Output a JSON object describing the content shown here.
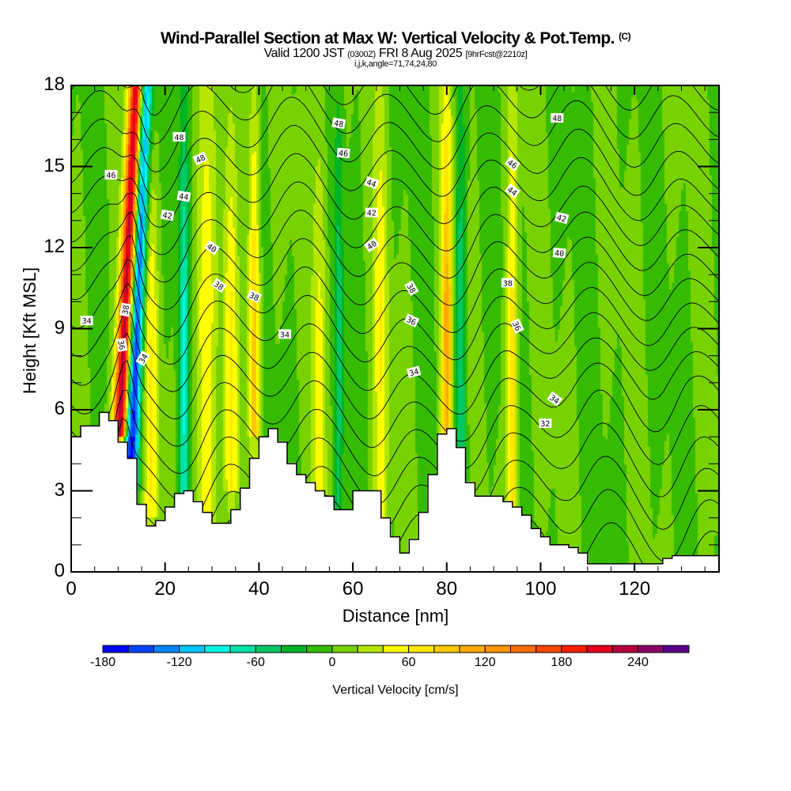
{
  "header": {
    "title": "Wind-Parallel Section at Max W: Vertical Velocity & Pot.Temp.",
    "copyright": "(C)",
    "valid_prefix": "Valid 1200 JST",
    "valid_utc": "(0300Z)",
    "valid_date": "FRI 8 Aug 2025",
    "forecast_info": "[9hrFcst@2210z]",
    "indices": "i,j,k,angle=71,74,24,80"
  },
  "chart_data": {
    "type": "heatmap",
    "title": "Wind-Parallel Section at Max W: Vertical Velocity & Pot.Temp.",
    "xlabel": "Distance [nm]",
    "ylabel": "Height [Kft MSL]",
    "xlim": [
      0,
      138
    ],
    "ylim": [
      0,
      18
    ],
    "x_ticks": [
      0,
      20,
      40,
      60,
      80,
      100,
      120
    ],
    "x_tick_labels": [
      "0",
      "20",
      "40",
      "60",
      "80",
      "100",
      "120"
    ],
    "y_ticks": [
      0,
      3,
      6,
      9,
      12,
      15,
      18
    ],
    "y_tick_labels": [
      "0",
      "3",
      "6",
      "9",
      "12",
      "15",
      "18"
    ],
    "colorbar": {
      "label": "Vertical Velocity [cm/s]",
      "orientation": "horizontal",
      "placement": "bottom",
      "levels": [
        -180,
        -160,
        -140,
        -120,
        -100,
        -80,
        -60,
        -40,
        -20,
        0,
        20,
        40,
        60,
        80,
        100,
        120,
        140,
        160,
        180,
        200,
        220,
        240,
        260,
        280
      ],
      "tick_labels": [
        "-180",
        "-120",
        "-60",
        "0",
        "60",
        "120",
        "180",
        "240"
      ],
      "colors": [
        "#0000ff",
        "#0046ff",
        "#0087ff",
        "#00c6ff",
        "#00fae6",
        "#00e1a5",
        "#00c864",
        "#00b427",
        "#35bc00",
        "#78d200",
        "#b4e600",
        "#ffff00",
        "#ffe600",
        "#ffc800",
        "#ffaa00",
        "#ff9600",
        "#ff6e00",
        "#ff4600",
        "#ff1e00",
        "#e6001e",
        "#b4003c",
        "#8c0064",
        "#5a008c"
      ]
    },
    "vertical_velocity_features": [
      {
        "x_nm": 11.5,
        "lean_nm_per_kft": 0.28,
        "w_cm_s": 250,
        "width_nm": 1.6,
        "base_kft": 5
      },
      {
        "x_nm": 13.8,
        "lean_nm_per_kft": 0.22,
        "w_cm_s": -175,
        "width_nm": 1.6,
        "base_kft": 3
      },
      {
        "x_nm": 17,
        "lean_nm_per_kft": 0,
        "w_cm_s": 55,
        "width_nm": 1.6,
        "base_kft": 2
      },
      {
        "x_nm": 24,
        "lean_nm_per_kft": 0,
        "w_cm_s": -80,
        "width_nm": 1.1,
        "base_kft": 2.5
      },
      {
        "x_nm": 28.5,
        "lean_nm_per_kft": 0,
        "w_cm_s": 55,
        "width_nm": 2.2,
        "base_kft": 1.5
      },
      {
        "x_nm": 34,
        "lean_nm_per_kft": 0,
        "w_cm_s": 60,
        "width_nm": 1.5,
        "base_kft": 3
      },
      {
        "x_nm": 39,
        "lean_nm_per_kft": 0,
        "w_cm_s": 90,
        "width_nm": 1.2,
        "base_kft": 5
      },
      {
        "x_nm": 53,
        "lean_nm_per_kft": 0,
        "w_cm_s": 45,
        "width_nm": 1.5,
        "base_kft": 1
      },
      {
        "x_nm": 57,
        "lean_nm_per_kft": 0,
        "w_cm_s": -50,
        "width_nm": 1.0,
        "base_kft": 1
      },
      {
        "x_nm": 66,
        "lean_nm_per_kft": 0,
        "w_cm_s": 55,
        "width_nm": 1.5,
        "base_kft": 2
      },
      {
        "x_nm": 80,
        "lean_nm_per_kft": 0,
        "w_cm_s": 110,
        "width_nm": 1.2,
        "base_kft": 3
      },
      {
        "x_nm": 83,
        "lean_nm_per_kft": 0,
        "w_cm_s": -60,
        "width_nm": 1.2,
        "base_kft": 3
      },
      {
        "x_nm": 94,
        "lean_nm_per_kft": 0,
        "w_cm_s": 70,
        "width_nm": 1.2,
        "base_kft": 1
      }
    ],
    "terrain_kft": {
      "x_nm": [
        0,
        2,
        6,
        8,
        10,
        12,
        14,
        16,
        18,
        20,
        22,
        24,
        26,
        28,
        30,
        32,
        34,
        36,
        38,
        40,
        42,
        44,
        46,
        48,
        50,
        52,
        54,
        56,
        58,
        60,
        62,
        64,
        66,
        68,
        70,
        72,
        74,
        76,
        78,
        80,
        82,
        84,
        86,
        88,
        90,
        92,
        94,
        96,
        98,
        100,
        102,
        104,
        106,
        108,
        110,
        112,
        114,
        116,
        118,
        120,
        122,
        124,
        126,
        128,
        130,
        132,
        134,
        136,
        138
      ],
      "height": [
        5.0,
        5.4,
        5.9,
        5.6,
        4.8,
        4.2,
        2.5,
        1.7,
        1.9,
        2.4,
        2.9,
        3.0,
        2.6,
        2.2,
        1.8,
        1.8,
        2.3,
        3.1,
        4.2,
        5.0,
        5.3,
        4.8,
        4.0,
        3.6,
        3.3,
        3.0,
        2.8,
        2.3,
        2.3,
        3.0,
        3.0,
        3.0,
        2.0,
        1.3,
        0.7,
        1.2,
        2.2,
        3.6,
        5.1,
        5.3,
        4.6,
        3.3,
        2.8,
        2.8,
        2.8,
        2.6,
        2.4,
        2.1,
        1.6,
        1.3,
        1.0,
        1.0,
        0.9,
        0.7,
        0.3,
        0.3,
        0.3,
        0.3,
        0.3,
        0.3,
        0.3,
        0.3,
        0.5,
        0.6,
        0.6,
        0.6,
        0.6,
        0.6,
        0.6
      ]
    },
    "potential_temperature_contours": {
      "levels_C": [
        32,
        33,
        34,
        35,
        36,
        37,
        38,
        39,
        40,
        41,
        42,
        43,
        44,
        45,
        46,
        47,
        48,
        49
      ],
      "labels": [
        {
          "text": "48",
          "x_nm": 23,
          "y_kft": 16.1,
          "angle": 0
        },
        {
          "text": "48",
          "x_nm": 27.5,
          "y_kft": 15.3,
          "angle": -25
        },
        {
          "text": "46",
          "x_nm": 8.5,
          "y_kft": 14.7,
          "angle": 0
        },
        {
          "text": "44",
          "x_nm": 24,
          "y_kft": 13.9,
          "angle": 10
        },
        {
          "text": "42",
          "x_nm": 20.5,
          "y_kft": 13.2,
          "angle": 10
        },
        {
          "text": "40",
          "x_nm": 30,
          "y_kft": 12.0,
          "angle": 35
        },
        {
          "text": "38",
          "x_nm": 31.5,
          "y_kft": 10.6,
          "angle": 35
        },
        {
          "text": "38",
          "x_nm": 39,
          "y_kft": 10.2,
          "angle": 25
        },
        {
          "text": "38",
          "x_nm": 11.5,
          "y_kft": 9.7,
          "angle": -80
        },
        {
          "text": "34",
          "x_nm": 3.3,
          "y_kft": 9.3,
          "angle": 0
        },
        {
          "text": "36",
          "x_nm": 10.8,
          "y_kft": 8.4,
          "angle": 80
        },
        {
          "text": "34",
          "x_nm": 15.3,
          "y_kft": 7.9,
          "angle": -60
        },
        {
          "text": "34",
          "x_nm": 45.5,
          "y_kft": 8.8,
          "angle": 0
        },
        {
          "text": "48",
          "x_nm": 57,
          "y_kft": 16.6,
          "angle": 10
        },
        {
          "text": "46",
          "x_nm": 58,
          "y_kft": 15.5,
          "angle": 5
        },
        {
          "text": "44",
          "x_nm": 64,
          "y_kft": 14.4,
          "angle": 20
        },
        {
          "text": "42",
          "x_nm": 64,
          "y_kft": 13.3,
          "angle": 0
        },
        {
          "text": "40",
          "x_nm": 64,
          "y_kft": 12.1,
          "angle": -35
        },
        {
          "text": "38",
          "x_nm": 72.5,
          "y_kft": 10.5,
          "angle": 60
        },
        {
          "text": "36",
          "x_nm": 72.5,
          "y_kft": 9.3,
          "angle": 25
        },
        {
          "text": "34",
          "x_nm": 73,
          "y_kft": 7.4,
          "angle": -15
        },
        {
          "text": "46",
          "x_nm": 94,
          "y_kft": 15.1,
          "angle": 35
        },
        {
          "text": "44",
          "x_nm": 94,
          "y_kft": 14.1,
          "angle": 35
        },
        {
          "text": "38",
          "x_nm": 93,
          "y_kft": 10.7,
          "angle": 0
        },
        {
          "text": "36",
          "x_nm": 95,
          "y_kft": 9.1,
          "angle": 65
        },
        {
          "text": "34",
          "x_nm": 103,
          "y_kft": 6.4,
          "angle": 35
        },
        {
          "text": "32",
          "x_nm": 101,
          "y_kft": 5.5,
          "angle": 0
        },
        {
          "text": "48",
          "x_nm": 103.5,
          "y_kft": 16.8,
          "angle": 0
        },
        {
          "text": "42",
          "x_nm": 104.5,
          "y_kft": 13.1,
          "angle": 15
        },
        {
          "text": "40",
          "x_nm": 104,
          "y_kft": 11.8,
          "angle": 5
        }
      ]
    }
  }
}
